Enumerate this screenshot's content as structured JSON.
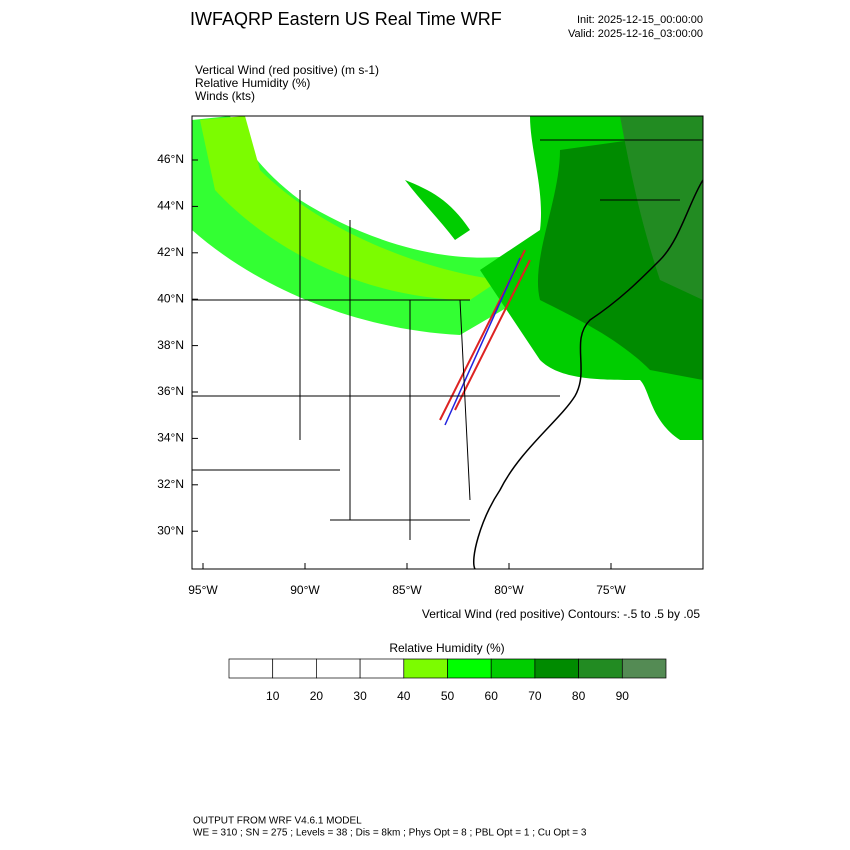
{
  "header": {
    "title": "IWFAQRP Eastern US Real Time WRF",
    "init": "Init: 2025-12-15_00:00:00",
    "valid": "Valid: 2025-12-16_03:00:00"
  },
  "fields": [
    "Vertical Wind (red positive)   (m s-1)",
    "Relative Humidity   (%)",
    "Winds   (kts)"
  ],
  "map": {
    "lat_labels": [
      "46°N",
      "44°N",
      "42°N",
      "40°N",
      "38°N",
      "36°N",
      "34°N",
      "32°N",
      "30°N"
    ],
    "lon_labels": [
      "95°W",
      "90°W",
      "85°W",
      "80°W",
      "75°W"
    ],
    "contour_note": "Vertical Wind (red positive) Contours: -.5 to .5 by .05"
  },
  "colorbar": {
    "title": "Relative Humidity  (%)",
    "colors": [
      "#ffffff",
      "#ffffff",
      "#ffffff",
      "#ffffff",
      "#7cfc00",
      "#00ff00",
      "#00cd00",
      "#008b00",
      "#228b22",
      "#548b54"
    ],
    "labels": [
      10,
      20,
      30,
      40,
      50,
      60,
      70,
      80,
      90
    ]
  },
  "footer": [
    "OUTPUT FROM WRF V4.6.1 MODEL",
    "WE = 310 ; SN = 275 ; Levels = 38 ; Dis = 8km ; Phys Opt = 8 ; PBL Opt = 1 ; Cu Opt = 3"
  ]
}
